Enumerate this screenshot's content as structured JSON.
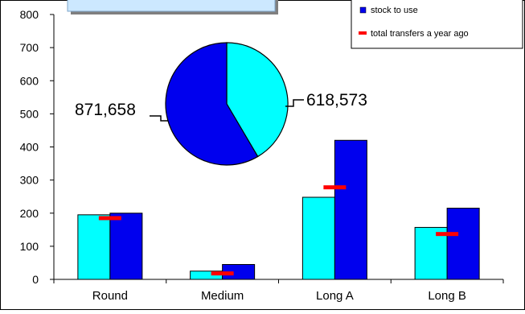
{
  "chart_data": [
    {
      "type": "bar",
      "title": "",
      "xlabel": "",
      "ylabel": "",
      "ylim": [
        0,
        800
      ],
      "yticks": [
        0,
        100,
        200,
        300,
        400,
        500,
        600,
        700,
        800
      ],
      "categories": [
        "Round",
        "Medium",
        "Long A",
        "Long B"
      ],
      "series": [
        {
          "values": [
            195,
            25,
            248,
            157
          ],
          "color": "#00ffff"
        },
        {
          "name": "stock to use",
          "values": [
            200,
            45,
            420,
            215
          ],
          "color": "#0000ee"
        }
      ],
      "markers": {
        "name": "total transfers a year ago",
        "values": [
          185,
          18,
          278,
          137
        ],
        "color": "#ff0000"
      },
      "grid": false,
      "legend_position": "top-right"
    },
    {
      "type": "pie",
      "title": "",
      "slices": [
        {
          "label": "618,573",
          "value": 618573,
          "color": "#00ffff"
        },
        {
          "label": "871,658",
          "value": 871658,
          "color": "#0000ee"
        }
      ]
    }
  ]
}
